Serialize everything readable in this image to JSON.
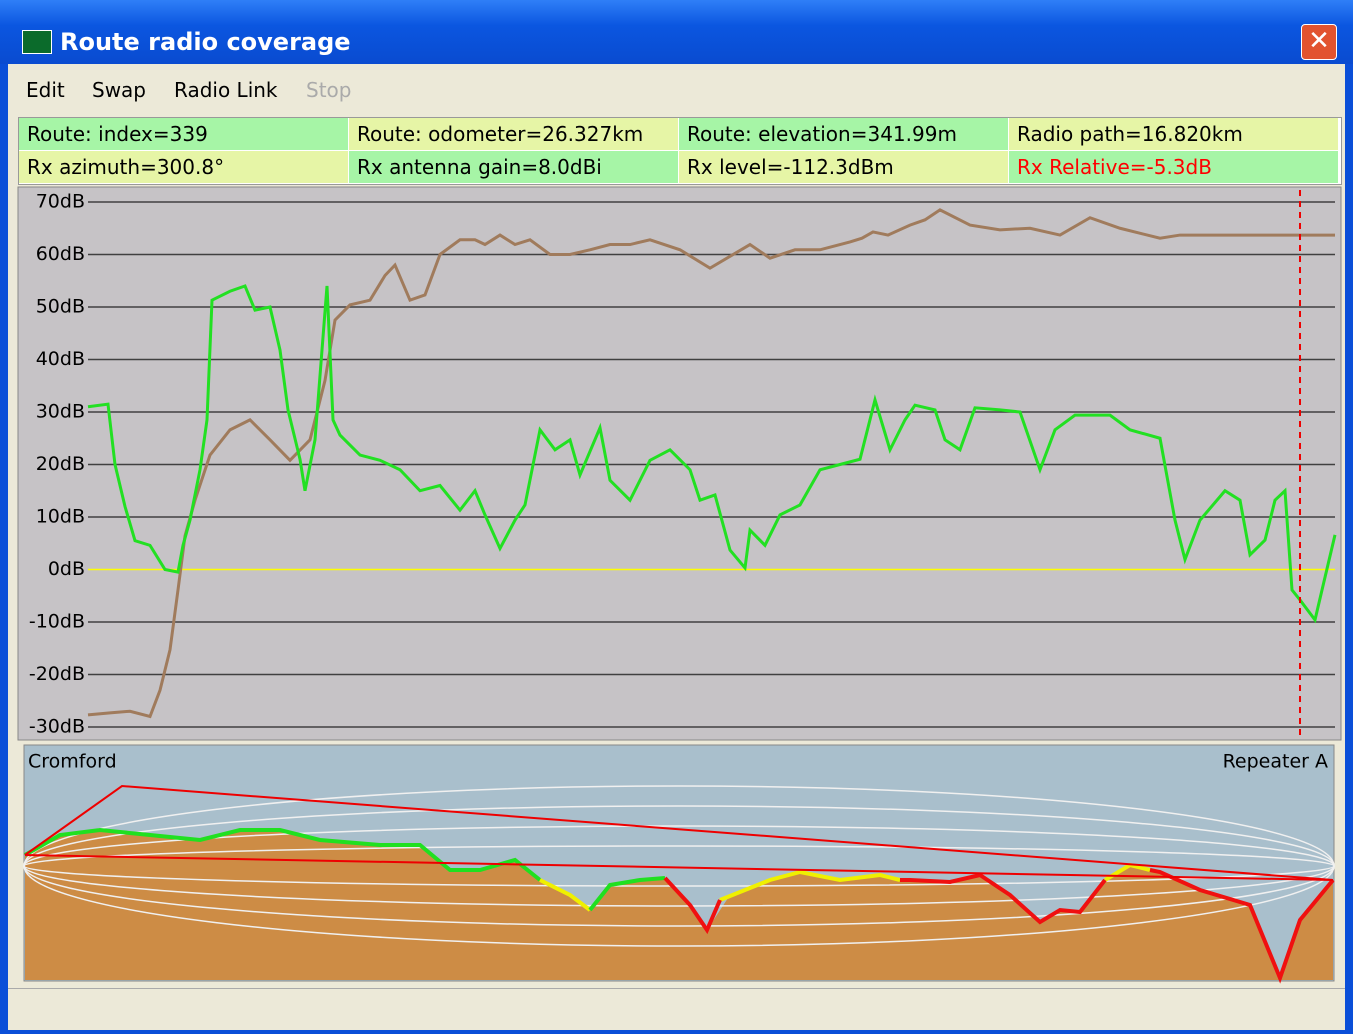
{
  "window": {
    "title": "Route radio coverage",
    "close": "✕"
  },
  "menu": [
    "Edit",
    "Swap",
    "Radio Link",
    "Stop"
  ],
  "info": [
    "Route: index=339",
    "Route: odometer=26.327km",
    "Route: elevation=341.99m",
    "Radio path=16.820km",
    "Rx azimuth=300.8°",
    "Rx antenna gain=8.0dBi",
    "Rx level=-112.3dBm",
    "Rx Relative=-5.3dB"
  ],
  "chart_data": {
    "type": "line",
    "ylim": [
      -30,
      70
    ],
    "yticks": [
      {
        "value": -30,
        "label": "-30dB"
      },
      {
        "value": -20,
        "label": "-20dB"
      },
      {
        "value": -10,
        "label": "-10dB"
      },
      {
        "value": 0,
        "label": "0dB"
      },
      {
        "value": 10,
        "label": "10dB"
      },
      {
        "value": 20,
        "label": "20dB"
      },
      {
        "value": 30,
        "label": "30dB"
      },
      {
        "value": 40,
        "label": "40dB"
      },
      {
        "value": 50,
        "label": "50dB"
      },
      {
        "value": 60,
        "label": "60dB"
      },
      {
        "value": 70,
        "label": "70dB"
      }
    ],
    "xlim": [
      0,
      1247
    ],
    "grid": true,
    "grid_color": "#404040",
    "zero_line_color": "#ffff00",
    "series": [
      {
        "color": "#a07b5c",
        "x": [
          0,
          22,
          42,
          62,
          72,
          82,
          90,
          97,
          107,
          122,
          142,
          162,
          182,
          202,
          222,
          237,
          247,
          262,
          282,
          297,
          307,
          322,
          337,
          352,
          372,
          387,
          397,
          412,
          427,
          442,
          462,
          482,
          502,
          522,
          542,
          562,
          592,
          622,
          662,
          682,
          707,
          732,
          752,
          762,
          774,
          785,
          800,
          822,
          837,
          852,
          882,
          912,
          942,
          972,
          1002,
          1032,
          1072,
          1092,
          1122,
          1152,
          1182,
          1202,
          1222,
          1237,
          1247
        ],
        "values": [
          -27.7,
          -27.3,
          -27,
          -28,
          -23,
          -15.3,
          -3.9,
          6.4,
          13.2,
          21.8,
          26.6,
          28.5,
          24.7,
          20.8,
          24.7,
          36,
          47.5,
          50.4,
          51.3,
          56,
          58,
          51.3,
          52.3,
          60,
          62.8,
          62.8,
          61.9,
          63.7,
          61.9,
          62.8,
          60,
          60,
          60.9,
          61.9,
          61.9,
          62.8,
          60.9,
          57.4,
          61.9,
          59.3,
          60.9,
          60.9,
          61.9,
          62.4,
          63.1,
          64.3,
          63.7,
          65.6,
          66.6,
          68.5,
          65.6,
          64.7,
          65,
          63.7,
          67,
          65,
          63.1,
          63.7,
          63.7,
          63.7,
          63.7,
          63.7,
          63.7,
          63.7,
          63.7
        ]
      },
      {
        "color": "#22e022",
        "x": [
          0,
          20,
          27,
          37,
          47,
          62,
          77,
          90,
          95,
          102,
          112,
          119,
          124,
          142,
          157,
          167,
          182,
          192,
          200,
          212,
          217,
          227,
          234,
          239,
          245,
          252,
          272,
          292,
          312,
          332,
          352,
          372,
          387,
          397,
          412,
          427,
          437,
          452,
          467,
          482,
          492,
          512,
          522,
          542,
          562,
          582,
          602,
          612,
          627,
          642,
          657,
          662,
          677,
          692,
          712,
          732,
          752,
          772,
          787,
          802,
          817,
          827,
          847,
          857,
          872,
          887,
          912,
          932,
          952,
          967,
          987,
          1022,
          1042,
          1072,
          1087,
          1097,
          1112,
          1137,
          1152,
          1162,
          1177,
          1187,
          1197,
          1204,
          1212,
          1227,
          1234,
          1247
        ],
        "values": [
          31,
          31.5,
          20,
          12,
          5.5,
          4.6,
          0,
          -0.5,
          4.6,
          9.4,
          19,
          28.5,
          51.3,
          53,
          54,
          49.4,
          50,
          41.8,
          30.4,
          21,
          15,
          24.7,
          41.8,
          54,
          28.5,
          25.6,
          21.8,
          20.8,
          19,
          15,
          16,
          11.3,
          15,
          10.4,
          4,
          9.4,
          12.3,
          26.6,
          22.8,
          24.7,
          18,
          27,
          17,
          13.2,
          20.8,
          22.8,
          19,
          13.2,
          14.2,
          3.7,
          0.3,
          7.5,
          4.6,
          10.4,
          12.3,
          19,
          20,
          21,
          32.3,
          22.8,
          28.5,
          31.3,
          30.4,
          24.7,
          22.8,
          30.8,
          30.4,
          30,
          19,
          26.6,
          29.4,
          29.4,
          26.6,
          25,
          9.4,
          1.9,
          9.4,
          15,
          13.2,
          2.8,
          5.6,
          13.2,
          15,
          -3.9,
          -5.8,
          -9.6,
          -3.9,
          6.6
        ]
      }
    ]
  },
  "profile": {
    "left": "Cromford",
    "right": "Repeater A"
  }
}
